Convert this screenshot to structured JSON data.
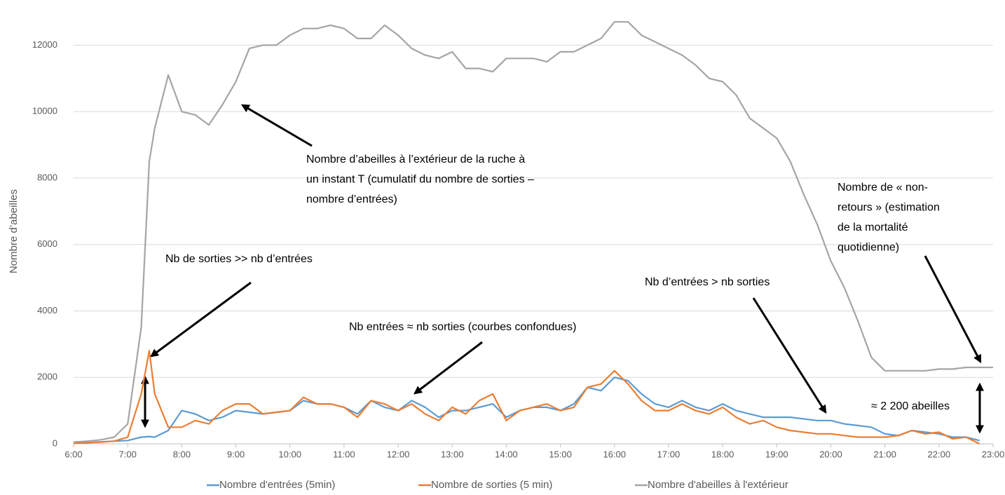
{
  "chart_data": {
    "type": "line",
    "y_label": "Nombre d’abeilles",
    "x": [
      6,
      6.25,
      6.5,
      6.75,
      7,
      7.25,
      7.4,
      7.5,
      7.75,
      8,
      8.25,
      8.5,
      8.75,
      9,
      9.25,
      9.5,
      9.75,
      10,
      10.25,
      10.5,
      10.75,
      11,
      11.25,
      11.5,
      11.75,
      12,
      12.25,
      12.5,
      12.75,
      13,
      13.25,
      13.5,
      13.75,
      14,
      14.25,
      14.5,
      14.75,
      15,
      15.25,
      15.5,
      15.75,
      16,
      16.25,
      16.5,
      16.75,
      17,
      17.25,
      17.5,
      17.75,
      18,
      18.25,
      18.5,
      18.75,
      19,
      19.25,
      19.5,
      19.75,
      20,
      20.25,
      20.5,
      20.75,
      21,
      21.25,
      21.5,
      21.75,
      22,
      22.25,
      22.5,
      22.75,
      23
    ],
    "xlim": [
      6,
      23
    ],
    "xticks": [
      {
        "value": 6,
        "label": "6:00"
      },
      {
        "value": 7,
        "label": "7:00"
      },
      {
        "value": 8,
        "label": "8:00"
      },
      {
        "value": 9,
        "label": "9:00"
      },
      {
        "value": 10,
        "label": "10:00"
      },
      {
        "value": 11,
        "label": "11:00"
      },
      {
        "value": 12,
        "label": "12:00"
      },
      {
        "value": 13,
        "label": "13:00"
      },
      {
        "value": 14,
        "label": "14:00"
      },
      {
        "value": 15,
        "label": "15:00"
      },
      {
        "value": 16,
        "label": "16:00"
      },
      {
        "value": 17,
        "label": "17:00"
      },
      {
        "value": 18,
        "label": "18:00"
      },
      {
        "value": 19,
        "label": "19:00"
      },
      {
        "value": 20,
        "label": "20:00"
      },
      {
        "value": 21,
        "label": "21:00"
      },
      {
        "value": 22,
        "label": "22:00"
      },
      {
        "value": 23,
        "label": "23:00"
      }
    ],
    "ylim": [
      0,
      13000
    ],
    "yticks": [
      0,
      2000,
      4000,
      6000,
      8000,
      10000,
      12000
    ],
    "grid": true,
    "legend": "bottom",
    "series": [
      {
        "name": "Nombre d'entrées (5min)",
        "color": "#5b9bd5",
        "values": [
          30,
          40,
          60,
          80,
          100,
          200,
          220,
          200,
          400,
          1000,
          900,
          700,
          800,
          1000,
          950,
          900,
          950,
          1000,
          1300,
          1200,
          1200,
          1100,
          900,
          1300,
          1100,
          1000,
          1300,
          1100,
          800,
          1000,
          1000,
          1100,
          1200,
          800,
          1000,
          1100,
          1100,
          1000,
          1200,
          1700,
          1600,
          2000,
          1900,
          1500,
          1200,
          1100,
          1300,
          1100,
          1000,
          1200,
          1000,
          900,
          800,
          800,
          800,
          750,
          700,
          700,
          600,
          550,
          500,
          300,
          250,
          400,
          350,
          300,
          200,
          200,
          100,
          null
        ]
      },
      {
        "name": "Nombre de sorties (5 min)",
        "color": "#ed7d31",
        "values": [
          20,
          30,
          50,
          80,
          200,
          1500,
          2800,
          1500,
          500,
          500,
          700,
          600,
          1000,
          1200,
          1200,
          900,
          950,
          1000,
          1400,
          1200,
          1200,
          1100,
          800,
          1300,
          1200,
          1000,
          1200,
          900,
          700,
          1100,
          900,
          1300,
          1500,
          700,
          1000,
          1100,
          1200,
          1000,
          1100,
          1700,
          1800,
          2200,
          1800,
          1300,
          1000,
          1000,
          1200,
          1000,
          900,
          1100,
          800,
          600,
          700,
          500,
          400,
          350,
          300,
          300,
          250,
          200,
          200,
          200,
          250,
          400,
          300,
          350,
          150,
          200,
          0,
          null
        ]
      },
      {
        "name": "Nombre d'abeilles à l'extérieur",
        "color": "#a5a5a5",
        "values": [
          50,
          80,
          120,
          200,
          600,
          3500,
          8500,
          9500,
          11100,
          10000,
          9900,
          9600,
          10200,
          10900,
          11900,
          12000,
          12000,
          12300,
          12500,
          12500,
          12600,
          12500,
          12200,
          12200,
          12600,
          12300,
          11900,
          11700,
          11600,
          11800,
          11300,
          11300,
          11200,
          11600,
          11600,
          11600,
          11500,
          11800,
          11800,
          12000,
          12200,
          12700,
          12700,
          12300,
          12100,
          11900,
          11700,
          11400,
          11000,
          10900,
          10500,
          9800,
          9500,
          9200,
          8500,
          7500,
          6600,
          5500,
          4700,
          3700,
          2600,
          2200,
          2200,
          2200,
          2200,
          2250,
          2250,
          2300,
          2300,
          2300
        ]
      }
    ],
    "annotations": [
      {
        "text": [
          "Nombre d’abeilles à l’extérieur de la ruche à",
          "un instant T (cumulatif du nombre de sorties –",
          "nombre d’entrées)"
        ]
      },
      {
        "text": [
          "Nb de sorties >> nb d’entrées"
        ]
      },
      {
        "text": [
          "Nb entrées ≈  nb sorties (courbes confondues)"
        ]
      },
      {
        "text": [
          "Nb d’entrées > nb sorties"
        ]
      },
      {
        "text": [
          "Nombre de « non-",
          "retours » (estimation",
          "de la mortalité",
          "quotidienne)"
        ]
      },
      {
        "text": [
          "≈ 2 200 abeilles"
        ]
      }
    ]
  }
}
